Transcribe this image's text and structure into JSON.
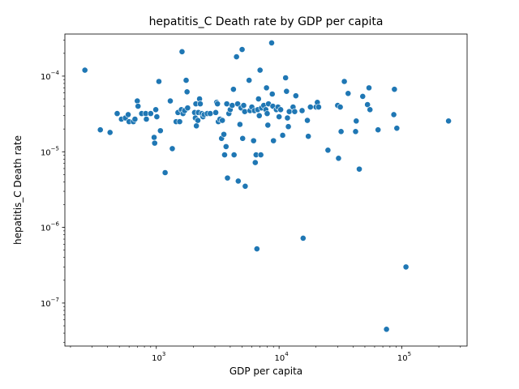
{
  "chart_data": {
    "type": "scatter",
    "title": "hepatitis_C Death rate by GDP per capita",
    "xlabel": "GDP per capita",
    "ylabel": "hepatitis_C Death rate",
    "xscale": "log",
    "yscale": "log",
    "xlim": [
      180,
      340000
    ],
    "ylim": [
      2.7e-08,
      0.00036
    ],
    "xticks": [
      {
        "value": 1000,
        "base": "10",
        "exp": "3"
      },
      {
        "value": 10000,
        "base": "10",
        "exp": "4"
      },
      {
        "value": 100000,
        "base": "10",
        "exp": "5"
      }
    ],
    "yticks": [
      {
        "value": 1e-07,
        "base": "10",
        "exp": "−7"
      },
      {
        "value": 1e-06,
        "base": "10",
        "exp": "−6"
      },
      {
        "value": 1e-05,
        "base": "10",
        "exp": "−5"
      },
      {
        "value": 0.0001,
        "base": "10",
        "exp": "−4"
      }
    ],
    "grid": false,
    "legend": "none",
    "marker_color": "#1f77b4",
    "points": [
      [
        262,
        0.00012
      ],
      [
        350,
        1.95e-05
      ],
      [
        420,
        1.8e-05
      ],
      [
        480,
        3.2e-05
      ],
      [
        520,
        2.7e-05
      ],
      [
        560,
        2.8e-05
      ],
      [
        590,
        3.1e-05
      ],
      [
        600,
        2.5e-05
      ],
      [
        650,
        2.5e-05
      ],
      [
        670,
        2.7e-05
      ],
      [
        700,
        4.7e-05
      ],
      [
        710,
        4e-05
      ],
      [
        760,
        3.2e-05
      ],
      [
        820,
        3.2e-05
      ],
      [
        830,
        2.7e-05
      ],
      [
        900,
        3.2e-05
      ],
      [
        960,
        1.55e-05
      ],
      [
        970,
        1.3e-05
      ],
      [
        990,
        3.6e-05
      ],
      [
        1010,
        2.9e-05
      ],
      [
        1050,
        8.5e-05
      ],
      [
        1080,
        1.9e-05
      ],
      [
        1180,
        5.3e-06
      ],
      [
        1300,
        4.7e-05
      ],
      [
        1350,
        1.1e-05
      ],
      [
        1450,
        2.5e-05
      ],
      [
        1500,
        3.3e-05
      ],
      [
        1550,
        2.5e-05
      ],
      [
        1600,
        3.6e-05
      ],
      [
        1620,
        0.00021
      ],
      [
        1650,
        3.2e-05
      ],
      [
        1700,
        3.5e-05
      ],
      [
        1750,
        8.8e-05
      ],
      [
        1780,
        6.2e-05
      ],
      [
        1800,
        3.8e-05
      ],
      [
        2050,
        3.3e-05
      ],
      [
        2080,
        2.8e-05
      ],
      [
        2100,
        4.3e-05
      ],
      [
        2120,
        2.2e-05
      ],
      [
        2180,
        2.6e-05
      ],
      [
        2200,
        3.3e-05
      ],
      [
        2250,
        5e-05
      ],
      [
        2280,
        4.3e-05
      ],
      [
        2350,
        3.2e-05
      ],
      [
        2400,
        2.9e-05
      ],
      [
        2450,
        3.1e-05
      ],
      [
        2600,
        3.2e-05
      ],
      [
        2750,
        3.2e-05
      ],
      [
        3050,
        3.3e-05
      ],
      [
        3100,
        4.5e-05
      ],
      [
        3150,
        4.3e-05
      ],
      [
        3200,
        2.5e-05
      ],
      [
        3300,
        2.7e-05
      ],
      [
        3400,
        1.5e-05
      ],
      [
        3450,
        2.6e-05
      ],
      [
        3550,
        1.7e-05
      ],
      [
        3600,
        9.1e-06
      ],
      [
        3700,
        1.17e-05
      ],
      [
        3750,
        4.3e-05
      ],
      [
        3800,
        4.5e-06
      ],
      [
        3900,
        3.2e-05
      ],
      [
        4000,
        3.6e-05
      ],
      [
        4150,
        4.1e-05
      ],
      [
        4250,
        6.7e-05
      ],
      [
        4300,
        9.1e-06
      ],
      [
        4500,
        0.00018
      ],
      [
        4600,
        4.3e-05
      ],
      [
        4650,
        4.1e-06
      ],
      [
        4800,
        2.3e-05
      ],
      [
        4900,
        3.8e-05
      ],
      [
        5000,
        0.000225
      ],
      [
        5050,
        1.5e-05
      ],
      [
        5150,
        4.1e-05
      ],
      [
        5250,
        3.4e-05
      ],
      [
        5300,
        3.5e-06
      ],
      [
        5700,
        8.8e-05
      ],
      [
        5800,
        3.5e-05
      ],
      [
        6000,
        3.9e-05
      ],
      [
        6200,
        1.4e-05
      ],
      [
        6300,
        3.5e-05
      ],
      [
        6400,
        7.2e-06
      ],
      [
        6500,
        9.1e-06
      ],
      [
        6600,
        5.2e-07
      ],
      [
        6700,
        3.6e-05
      ],
      [
        6800,
        5e-05
      ],
      [
        6900,
        3e-05
      ],
      [
        7000,
        0.00012
      ],
      [
        7100,
        9.1e-06
      ],
      [
        7200,
        3.8e-05
      ],
      [
        7500,
        4.1e-05
      ],
      [
        7800,
        3.6e-05
      ],
      [
        7900,
        7e-05
      ],
      [
        8000,
        3.2e-05
      ],
      [
        8100,
        2.25e-05
      ],
      [
        8200,
        4.3e-05
      ],
      [
        8700,
        0.000275
      ],
      [
        8800,
        5.8e-05
      ],
      [
        8900,
        4e-05
      ],
      [
        9000,
        1.4e-05
      ],
      [
        9500,
        3.6e-05
      ],
      [
        9800,
        3.9e-05
      ],
      [
        10000,
        2.9e-05
      ],
      [
        10300,
        3.6e-05
      ],
      [
        10700,
        1.65e-05
      ],
      [
        11300,
        9.5e-05
      ],
      [
        11500,
        6.3e-05
      ],
      [
        11700,
        2.8e-05
      ],
      [
        11900,
        2.15e-05
      ],
      [
        12100,
        3.4e-05
      ],
      [
        13000,
        3.9e-05
      ],
      [
        13400,
        3.4e-05
      ],
      [
        13700,
        5.5e-05
      ],
      [
        15400,
        3.5e-05
      ],
      [
        15700,
        7.2e-07
      ],
      [
        17000,
        2.6e-05
      ],
      [
        17300,
        1.6e-05
      ],
      [
        18000,
        3.9e-05
      ],
      [
        20000,
        3.9e-05
      ],
      [
        20500,
        4.5e-05
      ],
      [
        21000,
        3.9e-05
      ],
      [
        25000,
        1.05e-05
      ],
      [
        30000,
        4.1e-05
      ],
      [
        30500,
        8.2e-06
      ],
      [
        31500,
        3.9e-05
      ],
      [
        32000,
        1.85e-05
      ],
      [
        34000,
        8.5e-05
      ],
      [
        36500,
        5.9e-05
      ],
      [
        42000,
        1.85e-05
      ],
      [
        42500,
        2.55e-05
      ],
      [
        45000,
        5.9e-06
      ],
      [
        48000,
        5.4e-05
      ],
      [
        52500,
        4.2e-05
      ],
      [
        54000,
        7e-05
      ],
      [
        55000,
        3.6e-05
      ],
      [
        64000,
        1.95e-05
      ],
      [
        75000,
        4.5e-08
      ],
      [
        86000,
        3.1e-05
      ],
      [
        87000,
        6.7e-05
      ],
      [
        91000,
        2.05e-05
      ],
      [
        108000,
        3e-07
      ],
      [
        240000,
        2.55e-05
      ]
    ]
  }
}
